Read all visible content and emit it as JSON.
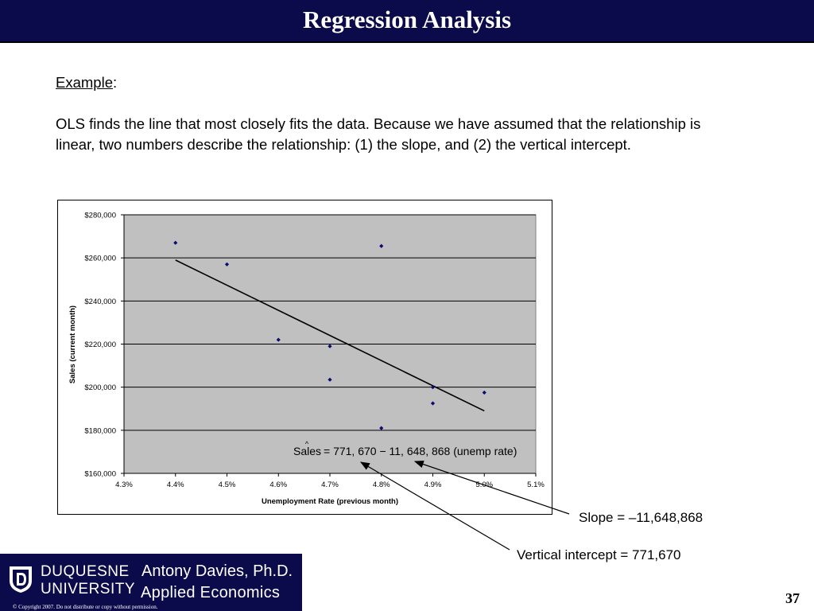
{
  "slide": {
    "title": "Regression Analysis",
    "page_number": "37"
  },
  "body": {
    "example_label": "Example",
    "example_colon": ":",
    "paragraph": "OLS finds the line that most closely fits the data. Because we have assumed that the relationship is linear, two numbers describe the relationship: (1) the slope, and (2) the vertical intercept."
  },
  "chart_data": {
    "type": "scatter",
    "title": "",
    "xlabel": "Unemployment Rate (previous month)",
    "ylabel": "Sales (current month)",
    "xlim": [
      4.3,
      5.1
    ],
    "ylim": [
      160000,
      280000
    ],
    "xticks": [
      4.3,
      4.4,
      4.5,
      4.6,
      4.7,
      4.8,
      4.9,
      5.0,
      5.1
    ],
    "x_tick_labels": [
      "4.3%",
      "4.4%",
      "4.5%",
      "4.6%",
      "4.7%",
      "4.8%",
      "4.9%",
      "5.0%",
      "5.1%"
    ],
    "yticks": [
      160000,
      180000,
      200000,
      220000,
      240000,
      260000,
      280000
    ],
    "y_tick_labels": [
      "$160,000",
      "$180,000",
      "$200,000",
      "$220,000",
      "$240,000",
      "$260,000",
      "$280,000"
    ],
    "grid": "horizontal",
    "plot_background": "#c0c0c0",
    "point_color": "#0b0a6e",
    "series": [
      {
        "points": [
          {
            "x": 4.4,
            "y": 267000
          },
          {
            "x": 4.5,
            "y": 257000
          },
          {
            "x": 4.6,
            "y": 222000
          },
          {
            "x": 4.7,
            "y": 219000
          },
          {
            "x": 4.7,
            "y": 203500
          },
          {
            "x": 4.8,
            "y": 265500
          },
          {
            "x": 4.8,
            "y": 181000
          },
          {
            "x": 4.9,
            "y": 200000
          },
          {
            "x": 4.9,
            "y": 192500
          },
          {
            "x": 5.0,
            "y": 197500
          }
        ]
      }
    ],
    "fit_line": {
      "from": {
        "x": 4.4,
        "y": 259000
      },
      "to": {
        "x": 5.0,
        "y": 189000
      }
    },
    "equation": {
      "lhs": "Sales",
      "hat": "^",
      "rhs": "= 771, 670 − 11, 648, 868 (unemp rate)"
    }
  },
  "callouts": {
    "slope": "Slope = –11,648,868",
    "intercept": "Vertical intercept = 771,670"
  },
  "footer": {
    "university_line1": "DUQUESNE",
    "university_line2": "UNIVERSITY",
    "author": "Antony Davies, Ph.D.",
    "course": "Applied Economics",
    "copyright": "© Copyright 2007. Do not distribute or copy without permission."
  }
}
